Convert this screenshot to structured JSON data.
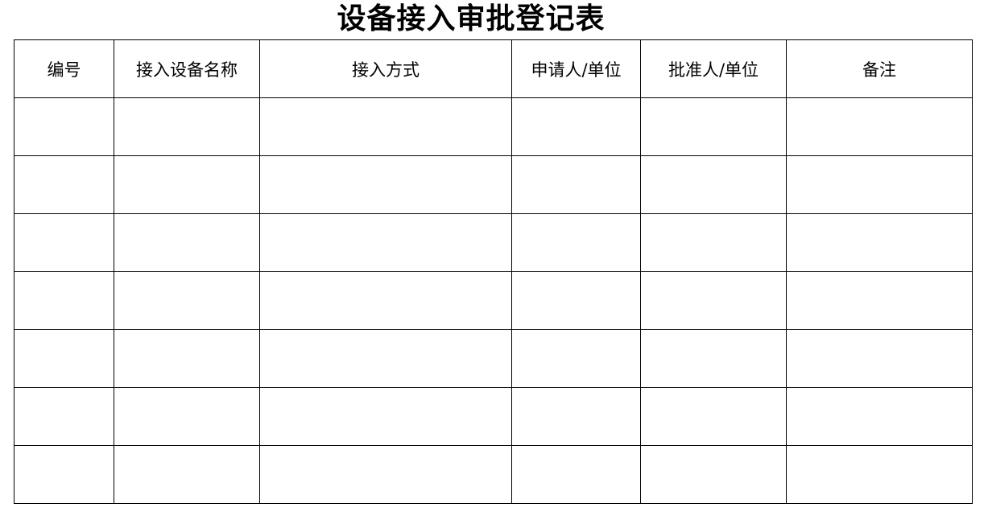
{
  "title": "设备接入审批登记表",
  "table": {
    "headers": [
      "编号",
      "接入设备名称",
      "接入方式",
      "申请人/单位",
      "批准人/单位",
      "备注"
    ],
    "rows": [
      [
        "",
        "",
        "",
        "",
        "",
        ""
      ],
      [
        "",
        "",
        "",
        "",
        "",
        ""
      ],
      [
        "",
        "",
        "",
        "",
        "",
        ""
      ],
      [
        "",
        "",
        "",
        "",
        "",
        ""
      ],
      [
        "",
        "",
        "",
        "",
        "",
        ""
      ],
      [
        "",
        "",
        "",
        "",
        "",
        ""
      ],
      [
        "",
        "",
        "",
        "",
        "",
        ""
      ]
    ]
  }
}
